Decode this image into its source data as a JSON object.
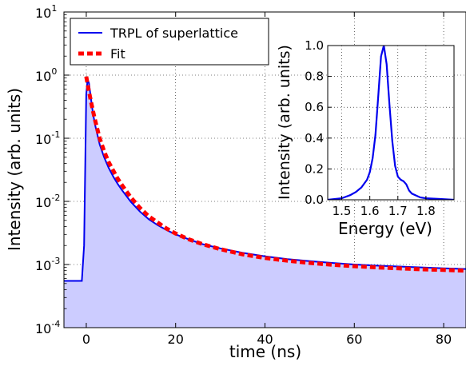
{
  "chart_data": [
    {
      "type": "line",
      "yscale": "log",
      "xlabel": "time (ns)",
      "ylabel": "Intensity (arb. units)",
      "xlim": [
        -5,
        85
      ],
      "ylim": [
        0.0001,
        10
      ],
      "grid": true,
      "legend_position": "top-left",
      "x_ticks": [
        0,
        20,
        40,
        60,
        80
      ],
      "x_tick_labels": [
        "0",
        "20",
        "40",
        "60",
        "80"
      ],
      "y_ticks": [
        0.0001,
        0.001,
        0.01,
        0.1,
        1,
        10
      ],
      "y_tick_labels": [
        {
          "base": "10",
          "exp": "-4"
        },
        {
          "base": "10",
          "exp": "-3"
        },
        {
          "base": "10",
          "exp": "-2"
        },
        {
          "base": "10",
          "exp": "-1"
        },
        {
          "base": "10",
          "exp": "0"
        },
        {
          "base": "10",
          "exp": "1"
        }
      ],
      "series": [
        {
          "name": "TRPL of superlattice",
          "style": "solid",
          "color": "#0000ee",
          "fill": "#ccccff",
          "x": [
            -5,
            -4,
            -3,
            -2,
            -1,
            -0.5,
            -0.2,
            0,
            0.3,
            0.6,
            1,
            1.5,
            2,
            3,
            4,
            5,
            6,
            7,
            8,
            10,
            12,
            14,
            16,
            18,
            20,
            23,
            26,
            30,
            35,
            40,
            45,
            50,
            55,
            60,
            65,
            70,
            75,
            80,
            85
          ],
          "y": [
            0.00055,
            0.00055,
            0.00055,
            0.00055,
            0.00055,
            0.002,
            0.05,
            0.5,
            0.85,
            0.75,
            0.45,
            0.25,
            0.16,
            0.08,
            0.05,
            0.034,
            0.025,
            0.019,
            0.015,
            0.0098,
            0.0069,
            0.0052,
            0.0042,
            0.0035,
            0.003,
            0.0025,
            0.0021,
            0.0018,
            0.00153,
            0.00135,
            0.00122,
            0.00113,
            0.00106,
            0.001,
            0.00096,
            0.00093,
            0.0009,
            0.00087,
            0.00085
          ]
        },
        {
          "name": "Fit",
          "style": "dashed",
          "color": "#ff0000",
          "x": [
            0,
            0.5,
            1,
            1.5,
            2,
            3,
            4,
            5,
            6,
            7,
            8,
            10,
            12,
            14,
            16,
            18,
            20,
            23,
            26,
            30,
            35,
            40,
            45,
            50,
            55,
            60,
            65,
            70,
            75,
            80,
            85
          ],
          "y": [
            0.95,
            0.6,
            0.4,
            0.27,
            0.19,
            0.1,
            0.062,
            0.042,
            0.031,
            0.023,
            0.018,
            0.0115,
            0.0079,
            0.0058,
            0.0046,
            0.0037,
            0.0031,
            0.0025,
            0.0021,
            0.00175,
            0.00145,
            0.00127,
            0.00115,
            0.00106,
            0.00099,
            0.00094,
            0.0009,
            0.00087,
            0.00084,
            0.00082,
            0.0008
          ]
        }
      ]
    },
    {
      "type": "line",
      "inset": true,
      "xlabel": "Energy (eV)",
      "ylabel": "Intensity (arb. units)",
      "xlim": [
        1.45,
        1.9
      ],
      "ylim": [
        0.0,
        1.0
      ],
      "grid": true,
      "x_ticks": [
        1.5,
        1.6,
        1.7,
        1.8
      ],
      "x_tick_labels": [
        "1.5",
        "1.6",
        "1.7",
        "1.8"
      ],
      "y_ticks": [
        0.0,
        0.2,
        0.4,
        0.6,
        0.8,
        1.0
      ],
      "y_tick_labels": [
        "0.0",
        "0.2",
        "0.4",
        "0.6",
        "0.8",
        "1.0"
      ],
      "series": [
        {
          "color": "#0000ee",
          "x": [
            1.45,
            1.5,
            1.53,
            1.55,
            1.57,
            1.59,
            1.6,
            1.61,
            1.62,
            1.63,
            1.64,
            1.65,
            1.66,
            1.67,
            1.68,
            1.69,
            1.7,
            1.71,
            1.72,
            1.73,
            1.74,
            1.75,
            1.78,
            1.8,
            1.85,
            1.9
          ],
          "y": [
            0.0,
            0.01,
            0.03,
            0.05,
            0.08,
            0.13,
            0.18,
            0.27,
            0.42,
            0.67,
            0.93,
            1.0,
            0.88,
            0.62,
            0.38,
            0.22,
            0.15,
            0.13,
            0.12,
            0.1,
            0.06,
            0.04,
            0.015,
            0.01,
            0.005,
            0.0
          ]
        }
      ]
    }
  ]
}
